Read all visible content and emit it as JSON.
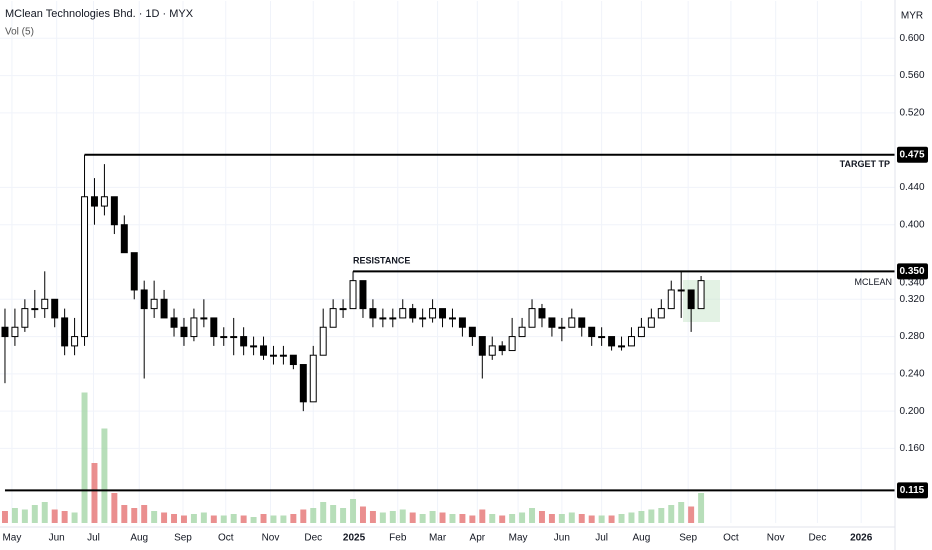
{
  "chart_data": {
    "type": "candlestick",
    "title": "MClean Technologies Bhd. · 1D · MYX",
    "subtitle": "Vol (5)",
    "currency": "MYR",
    "symbol": "MCLEAN",
    "last_price": 0.34,
    "last_price_label": "0.340",
    "up_color": "#ffffff",
    "down_color": "#000000",
    "volume_up_color": "#a5d6a7",
    "volume_down_color": "#e57373",
    "xlim": [
      -0.5,
      89.5
    ],
    "xticks": [
      {
        "value": 0.7,
        "label": "May"
      },
      {
        "value": 5.2,
        "label": "Jun"
      },
      {
        "value": 8.9,
        "label": "Jul"
      },
      {
        "value": 13.5,
        "label": "Aug"
      },
      {
        "value": 17.9,
        "label": "Sep"
      },
      {
        "value": 22.2,
        "label": "Oct"
      },
      {
        "value": 26.7,
        "label": "Nov"
      },
      {
        "value": 31,
        "label": "Dec"
      },
      {
        "value": 35.1,
        "label": "2025"
      },
      {
        "value": 39.5,
        "label": "Feb"
      },
      {
        "value": 43.5,
        "label": "Mar"
      },
      {
        "value": 47.5,
        "label": "Apr"
      },
      {
        "value": 51.6,
        "label": "May"
      },
      {
        "value": 56,
        "label": "Jun"
      },
      {
        "value": 60,
        "label": "Jul"
      },
      {
        "value": 64,
        "label": "Aug"
      },
      {
        "value": 68.7,
        "label": "Sep"
      },
      {
        "value": 73,
        "label": "Oct"
      },
      {
        "value": 77.5,
        "label": "Nov"
      },
      {
        "value": 81.7,
        "label": "Dec"
      },
      {
        "value": 86.1,
        "label": "2026"
      }
    ],
    "ylim": [
      0.08,
      0.64
    ],
    "yticks": [
      {
        "value": 0.6,
        "label": "0.600"
      },
      {
        "value": 0.56,
        "label": "0.560"
      },
      {
        "value": 0.52,
        "label": "0.520"
      },
      {
        "value": 0.44,
        "label": "0.440"
      },
      {
        "value": 0.4,
        "label": "0.400"
      },
      {
        "value": 0.32,
        "label": "0.320"
      },
      {
        "value": 0.28,
        "label": "0.280"
      },
      {
        "value": 0.24,
        "label": "0.240"
      },
      {
        "value": 0.2,
        "label": "0.200"
      },
      {
        "value": 0.16,
        "label": "0.160"
      }
    ],
    "grid": true,
    "levels": [
      {
        "name": "TARGET  TP",
        "value": 0.475,
        "value_label": "0.475",
        "start": 8
      },
      {
        "name": "RESISTANCE",
        "value": 0.35,
        "value_label": "0.350",
        "start": 35
      },
      {
        "value": 0.115,
        "value_label": "0.115",
        "start": 0
      }
    ],
    "open": [
      0.29,
      0.28,
      0.29,
      0.31,
      0.31,
      0.32,
      0.3,
      0.27,
      0.28,
      0.43,
      0.42,
      0.43,
      0.4,
      0.37,
      0.33,
      0.31,
      0.32,
      0.3,
      0.29,
      0.28,
      0.3,
      0.3,
      0.28,
      0.28,
      0.28,
      0.27,
      0.27,
      0.26,
      0.26,
      0.26,
      0.25,
      0.21,
      0.26,
      0.29,
      0.31,
      0.31,
      0.34,
      0.31,
      0.3,
      0.3,
      0.3,
      0.31,
      0.3,
      0.3,
      0.31,
      0.3,
      0.3,
      0.29,
      0.28,
      0.26,
      0.27,
      0.265,
      0.28,
      0.29,
      0.31,
      0.3,
      0.29,
      0.29,
      0.3,
      0.29,
      0.28,
      0.28,
      0.27,
      0.27,
      0.28,
      0.29,
      0.3,
      0.31,
      0.33,
      0.33,
      0.31
    ],
    "high": [
      0.31,
      0.31,
      0.32,
      0.33,
      0.35,
      0.32,
      0.31,
      0.3,
      0.475,
      0.45,
      0.465,
      0.43,
      0.41,
      0.37,
      0.34,
      0.34,
      0.33,
      0.31,
      0.3,
      0.31,
      0.32,
      0.3,
      0.29,
      0.3,
      0.29,
      0.28,
      0.28,
      0.27,
      0.27,
      0.26,
      0.25,
      0.27,
      0.31,
      0.32,
      0.32,
      0.35,
      0.34,
      0.32,
      0.31,
      0.31,
      0.32,
      0.315,
      0.31,
      0.32,
      0.31,
      0.31,
      0.3,
      0.29,
      0.28,
      0.28,
      0.275,
      0.3,
      0.3,
      0.32,
      0.315,
      0.3,
      0.3,
      0.31,
      0.3,
      0.29,
      0.29,
      0.28,
      0.28,
      0.29,
      0.3,
      0.31,
      0.32,
      0.34,
      0.35,
      0.33,
      0.345
    ],
    "low": [
      0.23,
      0.27,
      0.285,
      0.3,
      0.3,
      0.29,
      0.26,
      0.26,
      0.27,
      0.4,
      0.41,
      0.39,
      0.37,
      0.32,
      0.235,
      0.3,
      0.3,
      0.28,
      0.27,
      0.275,
      0.29,
      0.27,
      0.27,
      0.26,
      0.26,
      0.26,
      0.255,
      0.25,
      0.25,
      0.245,
      0.2,
      0.21,
      0.26,
      0.29,
      0.3,
      0.31,
      0.3,
      0.29,
      0.29,
      0.29,
      0.3,
      0.295,
      0.29,
      0.295,
      0.29,
      0.29,
      0.28,
      0.27,
      0.235,
      0.255,
      0.26,
      0.265,
      0.28,
      0.29,
      0.29,
      0.28,
      0.275,
      0.29,
      0.28,
      0.27,
      0.27,
      0.265,
      0.265,
      0.27,
      0.28,
      0.29,
      0.3,
      0.31,
      0.3,
      0.285,
      0.31
    ],
    "close": [
      0.28,
      0.29,
      0.31,
      0.31,
      0.32,
      0.3,
      0.27,
      0.28,
      0.43,
      0.42,
      0.43,
      0.4,
      0.37,
      0.33,
      0.31,
      0.32,
      0.3,
      0.29,
      0.28,
      0.3,
      0.3,
      0.28,
      0.28,
      0.28,
      0.27,
      0.27,
      0.26,
      0.26,
      0.26,
      0.25,
      0.21,
      0.26,
      0.29,
      0.31,
      0.31,
      0.34,
      0.31,
      0.3,
      0.3,
      0.3,
      0.31,
      0.3,
      0.3,
      0.31,
      0.3,
      0.3,
      0.29,
      0.28,
      0.26,
      0.27,
      0.265,
      0.28,
      0.29,
      0.31,
      0.3,
      0.29,
      0.29,
      0.3,
      0.29,
      0.28,
      0.28,
      0.27,
      0.27,
      0.28,
      0.29,
      0.3,
      0.31,
      0.33,
      0.33,
      0.31,
      0.34
    ],
    "volume_lim": [
      0,
      100
    ],
    "volume": [
      8,
      10,
      9,
      12,
      14,
      9,
      8,
      7,
      87,
      40,
      63,
      20,
      12,
      10,
      12,
      8,
      7,
      6,
      5,
      6,
      7,
      5,
      5,
      6,
      5,
      4,
      6,
      5,
      5,
      6,
      9,
      10,
      14,
      12,
      10,
      16,
      11,
      8,
      7,
      8,
      9,
      7,
      6,
      8,
      7,
      6,
      6,
      5,
      9,
      6,
      5,
      6,
      7,
      10,
      8,
      6,
      6,
      7,
      6,
      5,
      5,
      5,
      6,
      7,
      8,
      9,
      10,
      12,
      14,
      11,
      20
    ]
  }
}
